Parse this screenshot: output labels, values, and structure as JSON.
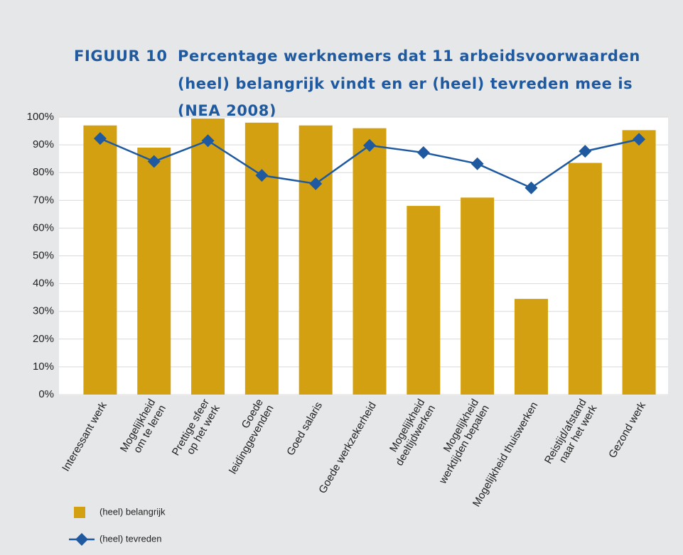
{
  "chart_data": {
    "type": "bar_line",
    "figure_label": "FIGUUR 10",
    "title": "Percentage werknemers dat 11 arbeidsvoorwaarden (heel) belangrijk vindt en er (heel) tevreden mee is (NEA 2008)",
    "categories": [
      [
        "Interessant werk"
      ],
      [
        "Mogelijkheid",
        "om te leren"
      ],
      [
        "Prettige sfeer",
        "op het werk"
      ],
      [
        "Goede",
        "leidinggevenden"
      ],
      [
        "Goed salaris"
      ],
      [
        "Goede werkzekerheid"
      ],
      [
        "Mogelijkheid",
        "deeltijdwerken"
      ],
      [
        "Mogelijkheid",
        "werktijden bepalen"
      ],
      [
        "Mogelijkheid thuiswerken"
      ],
      [
        "Reistijd/afstand",
        "naar het werk"
      ],
      [
        "Gezond werk"
      ]
    ],
    "series": [
      {
        "name": "(heel) belangrijk",
        "kind": "bar",
        "color": "#d3a011",
        "values": [
          97,
          89,
          99.5,
          98,
          97,
          96,
          68,
          71,
          34.5,
          83.5,
          95.3
        ]
      },
      {
        "name": "(heel) tevreden",
        "kind": "line",
        "color": "#1f5aa0",
        "values": [
          92.3,
          84,
          91.5,
          79,
          76,
          89.8,
          87.2,
          83.2,
          74.5,
          87.7,
          92
        ]
      }
    ],
    "ylim": [
      0,
      100
    ],
    "yticks": [
      {
        "value": 0,
        "label": "0%"
      },
      {
        "value": 10,
        "label": "10%"
      },
      {
        "value": 20,
        "label": "20%"
      },
      {
        "value": 30,
        "label": "30%"
      },
      {
        "value": 40,
        "label": "40%"
      },
      {
        "value": 50,
        "label": "50%"
      },
      {
        "value": 60,
        "label": "60%"
      },
      {
        "value": 70,
        "label": "70%"
      },
      {
        "value": 80,
        "label": "80%"
      },
      {
        "value": 90,
        "label": "90%"
      },
      {
        "value": 100,
        "label": "100%"
      }
    ],
    "grid": true
  }
}
